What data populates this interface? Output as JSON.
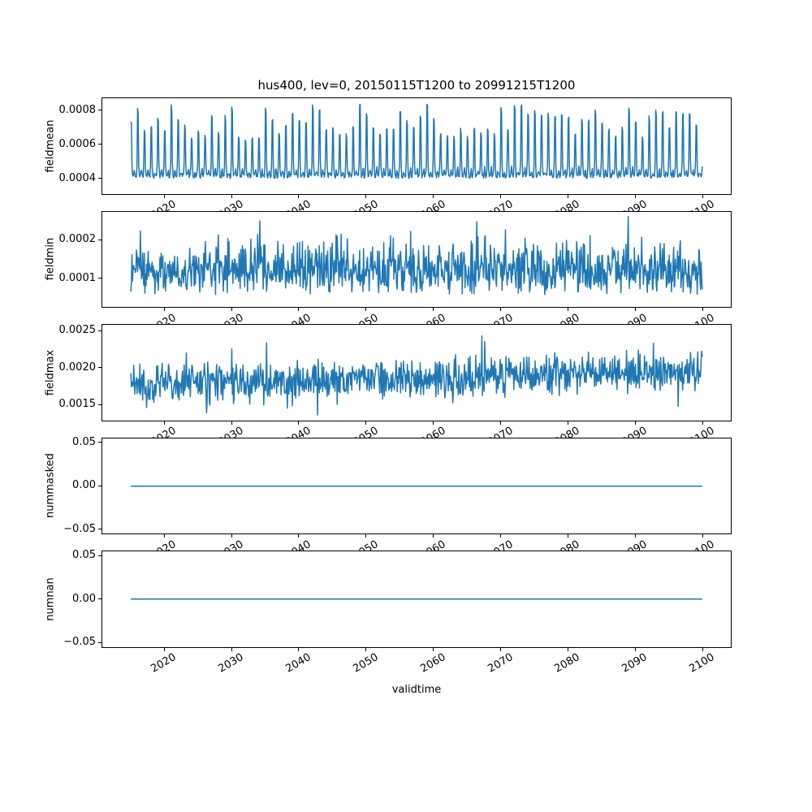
{
  "figure": {
    "title": "hus400, lev=0, 20150115T1200 to 20991215T1200",
    "xlabel": "validtime",
    "background_color": "#ffffff",
    "line_color": "#1f77b4",
    "spine_color": "#000000",
    "text_color": "#000000",
    "x": {
      "label": "validtime",
      "start_year_fraction": 2015.042,
      "end_year_fraction": 2099.958,
      "n_points": 1020,
      "lim": [
        2010.8,
        2104.2
      ],
      "ticks": [
        2020,
        2030,
        2040,
        2050,
        2060,
        2070,
        2080,
        2090,
        2100
      ],
      "tick_labels": [
        "2020",
        "2030",
        "2040",
        "2050",
        "2060",
        "2070",
        "2080",
        "2090",
        "2100"
      ],
      "tick_rotation_deg": 30
    }
  },
  "chart_data": [
    {
      "type": "line",
      "name": "fieldmean",
      "ylabel": "fieldmean",
      "ytick_values": [
        0.0004,
        0.0006,
        0.0008
      ],
      "ytick_labels": [
        "0.0004",
        "0.0006",
        "0.0008"
      ],
      "ylim": [
        0.00031,
        0.00087
      ],
      "series": {
        "pattern": "seasonal",
        "seed": 11,
        "base": 0.0004,
        "noise": 3e-05,
        "peak_phase": 0.04,
        "peak_amp_min": 0.00025,
        "peak_amp_max": 0.0005,
        "bump_phase": 0.55,
        "bump_amp": 6e-05,
        "min": 0.000335,
        "max": 0.000845,
        "approx_mean": 0.00052
      }
    },
    {
      "type": "line",
      "name": "fieldmin",
      "ylabel": "fieldmin",
      "ytick_values": [
        0.0001,
        0.0002
      ],
      "ytick_labels": [
        "0.0001",
        "0.0002"
      ],
      "ylim": [
        2.5e-05,
        0.000274
      ],
      "series": {
        "pattern": "spiky",
        "seed": 23,
        "base": 5.8e-05,
        "band": 8e-05,
        "band2": 7e-05,
        "spike_prob": 0.05,
        "spike_amp": 9e-05,
        "min": 5e-05,
        "max": 0.000262,
        "approx_mean": 0.00011
      }
    },
    {
      "type": "line",
      "name": "fieldmax",
      "ylabel": "fieldmax",
      "ytick_values": [
        0.0015,
        0.002,
        0.0025
      ],
      "ytick_labels": [
        "0.0015",
        "0.0020",
        "0.0025"
      ],
      "ylim": [
        0.00129,
        0.00258
      ],
      "series": {
        "pattern": "trend_noise",
        "seed": 37,
        "start": 0.00176,
        "end": 0.00196,
        "noise": 0.00032,
        "spike_amp": 0.00035,
        "min": 0.00136,
        "max": 0.00252,
        "approx_mean": 0.0019
      }
    },
    {
      "type": "line",
      "name": "nummasked",
      "ylabel": "nummasked",
      "ytick_values": [
        0.05,
        0.0,
        -0.05
      ],
      "ytick_labels": [
        "0.05",
        "0.00",
        "−0.05"
      ],
      "ylim": [
        -0.055,
        0.055
      ],
      "series": {
        "pattern": "constant",
        "seed": 1,
        "value": 0
      }
    },
    {
      "type": "line",
      "name": "numnan",
      "ylabel": "numnan",
      "ytick_values": [
        0.05,
        0.0,
        -0.05
      ],
      "ytick_labels": [
        "0.05",
        "0.00",
        "−0.05"
      ],
      "ylim": [
        -0.055,
        0.055
      ],
      "series": {
        "pattern": "constant",
        "seed": 2,
        "value": 0
      }
    }
  ]
}
